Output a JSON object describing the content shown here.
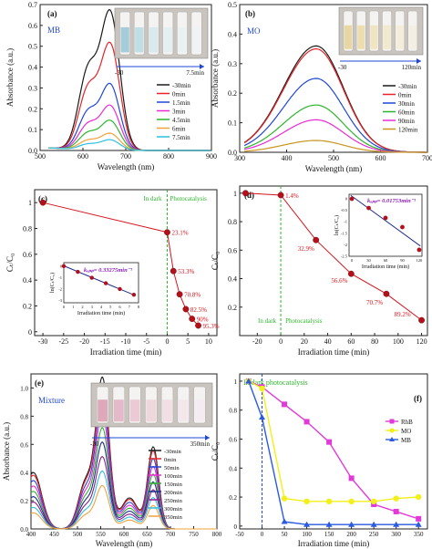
{
  "chart_data": [
    {
      "id": "a",
      "type": "line",
      "panel_label": "(a)",
      "title": "MB",
      "xlabel": "Wavelength (nm)",
      "ylabel": "Absorbance (a.u.)",
      "xlim": [
        500,
        900
      ],
      "ylim": [
        0,
        0.7
      ],
      "xticks": [
        "500",
        "600",
        "700",
        "800",
        "900"
      ],
      "yticks": [
        "0.0",
        "0.1",
        "0.2",
        "0.3",
        "0.4",
        "0.5",
        "0.6",
        "0.7"
      ],
      "legend_position": "right",
      "inset": {
        "photo": "MB solution vials",
        "arrow_start": "-30",
        "arrow_end": "7.5min"
      },
      "series": [
        {
          "name": "-30min",
          "color": "#1a1a1a",
          "peak": 0.65
        },
        {
          "name": "0min",
          "color": "#e8232a",
          "peak": 0.5
        },
        {
          "name": "1.5min",
          "color": "#1f47d8",
          "peak": 0.31
        },
        {
          "name": "3min",
          "color": "#ea2bd5",
          "peak": 0.21
        },
        {
          "name": "4.5min",
          "color": "#2cb52c",
          "peak": 0.14
        },
        {
          "name": "6min",
          "color": "#f2a13a",
          "peak": 0.08
        },
        {
          "name": "7.5min",
          "color": "#2dbfe0",
          "peak": 0.05
        }
      ]
    },
    {
      "id": "b",
      "type": "line",
      "panel_label": "(b)",
      "title": "MO",
      "xlabel": "Wavelength (nm)",
      "ylabel": "Absorbance (a.u.)",
      "xlim": [
        300,
        700
      ],
      "ylim": [
        0,
        0.5
      ],
      "xticks": [
        "300",
        "400",
        "500",
        "600",
        "700"
      ],
      "yticks": [
        "0.0",
        "0.1",
        "0.2",
        "0.3",
        "0.4",
        "0.5"
      ],
      "legend_position": "right",
      "inset": {
        "photo": "MO solution vials",
        "arrow_start": "-30",
        "arrow_end": "120min"
      },
      "series": [
        {
          "name": "-30min",
          "color": "#1a1a1a",
          "peak": 0.36
        },
        {
          "name": "0min",
          "color": "#e8232a",
          "peak": 0.35
        },
        {
          "name": "30min",
          "color": "#1f47d8",
          "peak": 0.25
        },
        {
          "name": "60min",
          "color": "#2cb52c",
          "peak": 0.16
        },
        {
          "name": "90min",
          "color": "#ea2bd5",
          "peak": 0.11
        },
        {
          "name": "120min",
          "color": "#c8961e",
          "peak": 0.04
        }
      ]
    },
    {
      "id": "c",
      "type": "line",
      "panel_label": "(c)",
      "xlabel": "Irradiation time (min)",
      "ylabel": "Cₜ/C₀",
      "xlim": [
        -32,
        12
      ],
      "ylim": [
        -0.03,
        1.1
      ],
      "xticks": [
        -30,
        -25,
        -20,
        -15,
        -10,
        -5,
        0,
        5,
        10
      ],
      "yticks": [
        0.0,
        0.2,
        0.4,
        0.6,
        0.8,
        1.0
      ],
      "region_labels": [
        "In dark",
        "Photocatalysis"
      ],
      "series": [
        {
          "name": "MB",
          "color": "#d4141c",
          "x": [
            -30,
            0,
            1.5,
            3,
            4.5,
            6,
            7.5
          ],
          "y": [
            1.0,
            0.77,
            0.47,
            0.29,
            0.175,
            0.1,
            0.048
          ]
        }
      ],
      "point_labels": [
        "",
        "23.1%",
        "53.3%",
        "70.8%",
        "82.5%",
        "90%",
        "95.3%"
      ],
      "inset": {
        "title": "kₐₚₚ= 0.33275min⁻¹",
        "xlabel": "Irradiation time (min)",
        "ylabel": "ln(Cₜ/C₀)",
        "xlim": [
          0,
          8
        ],
        "ylim": [
          -3.2,
          0.3
        ],
        "xticks": [
          0,
          1,
          2,
          3,
          4,
          5,
          6,
          7,
          8
        ],
        "yticks": [
          0,
          -1,
          -2,
          -3
        ],
        "x": [
          0,
          1.5,
          3,
          4.5,
          6,
          7.5
        ],
        "y": [
          0.0,
          -0.5,
          -1.02,
          -1.5,
          -2.0,
          -2.5
        ]
      }
    },
    {
      "id": "d",
      "type": "line",
      "panel_label": "(d)",
      "xlabel": "Irradiation time (min)",
      "ylabel": "Cₜ/C₀",
      "xlim": [
        -35,
        125
      ],
      "ylim": [
        0,
        1.05
      ],
      "xticks": [
        -20,
        0,
        20,
        40,
        60,
        80,
        100,
        120
      ],
      "yticks": [
        0.2,
        0.4,
        0.6,
        0.8,
        1.0
      ],
      "region_labels": [
        "In dark",
        "Photocatalysis"
      ],
      "series": [
        {
          "name": "MO",
          "color": "#d4141c",
          "x": [
            -30,
            0,
            30,
            60,
            90,
            120
          ],
          "y": [
            1.0,
            0.986,
            0.671,
            0.434,
            0.293,
            0.108
          ]
        }
      ],
      "point_labels": [
        "",
        "1.4%",
        "32.9%",
        "56.6%",
        "70.7%",
        "89.2%"
      ],
      "inset": {
        "title": "kₐₚₚ= 0.01753min⁻¹",
        "xlabel": "Irradiation time (min)",
        "ylabel": "ln(Cₜ/C₀)",
        "xlim": [
          -5,
          125
        ],
        "ylim": [
          -2.5,
          0.2
        ],
        "xticks": [
          0,
          30,
          60,
          90,
          120
        ],
        "yticks": [
          0.0,
          -0.5,
          -1.0,
          -1.5,
          -2.0,
          -2.5
        ],
        "x": [
          0,
          30,
          60,
          90,
          120
        ],
        "y": [
          0.0,
          -0.4,
          -0.83,
          -1.23,
          -2.22
        ]
      }
    },
    {
      "id": "e",
      "type": "line",
      "panel_label": "(e)",
      "title": "Mixture",
      "xlabel": "Wavelength (nm)",
      "ylabel": "Absorbance (a.u.)",
      "xlim": [
        400,
        800
      ],
      "ylim": [
        0,
        1.1
      ],
      "xticks": [
        "400",
        "450",
        "500",
        "550",
        "600",
        "650",
        "700",
        "750",
        "800"
      ],
      "yticks": [
        "0.0",
        "0.2",
        "0.4",
        "0.6",
        "0.8",
        "1.0"
      ],
      "legend_position": "right",
      "inset": {
        "photo": "mixture solution vials",
        "arrow_start": "-30",
        "arrow_end": "350min"
      },
      "series": [
        {
          "name": "-30min",
          "color": "#1a1a1a",
          "peak": 1.05
        },
        {
          "name": "0min",
          "color": "#e8232a",
          "peak": 1.0
        },
        {
          "name": "50min",
          "color": "#1f47d8",
          "peak": 0.9
        },
        {
          "name": "100min",
          "color": "#ea2bd5",
          "peak": 0.8
        },
        {
          "name": "150min",
          "color": "#2cb52c",
          "peak": 0.7
        },
        {
          "name": "200min",
          "color": "#1f2c8c",
          "peak": 0.6
        },
        {
          "name": "250min",
          "color": "#8c1f8c",
          "peak": 0.5
        },
        {
          "name": "300min",
          "color": "#2dbfe0",
          "peak": 0.4
        },
        {
          "name": "350min",
          "color": "#f2a13a",
          "peak": 0.3
        }
      ]
    },
    {
      "id": "f",
      "type": "line",
      "panel_label": "(f)",
      "xlabel": "Irradiation time (min)",
      "ylabel": "Cₜ/C₀",
      "xlim": [
        -50,
        370
      ],
      "ylim": [
        -0.02,
        1.05
      ],
      "xticks": [
        -50,
        0,
        50,
        100,
        150,
        200,
        250,
        300,
        350
      ],
      "yticks": [
        0.0,
        0.2,
        0.4,
        0.6,
        0.8,
        1.0
      ],
      "region_labels": [
        "In dark",
        "photocatalysis"
      ],
      "legend_position": "right",
      "series": [
        {
          "name": "RhB",
          "color": "#e23ad8",
          "marker": "square",
          "x": [
            -30,
            0,
            50,
            100,
            150,
            200,
            250,
            300,
            350
          ],
          "y": [
            1.0,
            0.96,
            0.84,
            0.72,
            0.58,
            0.33,
            0.15,
            0.1,
            0.05
          ]
        },
        {
          "name": "MO",
          "color": "#f2f01a",
          "marker": "circle",
          "x": [
            -30,
            0,
            50,
            100,
            150,
            200,
            250,
            300,
            350
          ],
          "y": [
            1.0,
            0.95,
            0.19,
            0.17,
            0.17,
            0.17,
            0.17,
            0.19,
            0.2
          ]
        },
        {
          "name": "MB",
          "color": "#2a5be0",
          "marker": "triangle",
          "x": [
            -30,
            0,
            50,
            100,
            150,
            200,
            250,
            300,
            350
          ],
          "y": [
            1.0,
            0.75,
            0.03,
            0.01,
            0.01,
            0.01,
            0.01,
            0.01,
            0.01
          ]
        }
      ]
    }
  ]
}
